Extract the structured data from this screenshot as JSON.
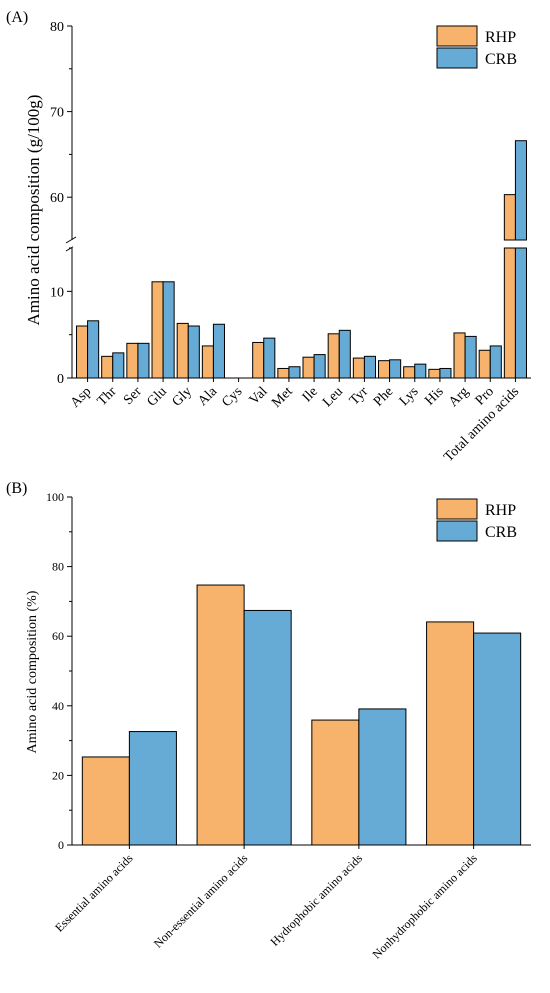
{
  "colors": {
    "rhp": "#F7B36B",
    "crb": "#66AAD6"
  },
  "panels": {
    "a": {
      "label": "(A)"
    },
    "b": {
      "label": "(B)"
    }
  },
  "chart_data": [
    {
      "type": "bar",
      "panel": "(A)",
      "ylabel": "Amino acid composition (g/100g)",
      "xlabel": "",
      "title": "",
      "axis_break": true,
      "ylim_lower": [
        0,
        15
      ],
      "ylim_upper": [
        55,
        80
      ],
      "yticks_lower": [
        0,
        10
      ],
      "yticks_upper": [
        60,
        70,
        80
      ],
      "legend_position": "top-right",
      "categories": [
        "Asp",
        "Thr",
        "Ser",
        "Glu",
        "Gly",
        "Ala",
        "Cys",
        "Val",
        "Met",
        "Ile",
        "Leu",
        "Tyr",
        "Phe",
        "Lys",
        "His",
        "Arg",
        "Pro",
        "Total amino acids"
      ],
      "series": [
        {
          "name": "RHP",
          "values": [
            6.0,
            2.5,
            4.0,
            11.1,
            6.3,
            3.7,
            0,
            4.1,
            1.1,
            2.4,
            5.1,
            2.3,
            2.0,
            1.3,
            1.0,
            5.2,
            3.2,
            60.3
          ]
        },
        {
          "name": "CRB",
          "values": [
            6.6,
            2.9,
            4.0,
            11.1,
            6.0,
            6.2,
            0,
            4.6,
            1.3,
            2.7,
            5.5,
            2.5,
            2.1,
            1.6,
            1.1,
            4.8,
            3.7,
            66.6
          ]
        }
      ]
    },
    {
      "type": "bar",
      "panel": "(B)",
      "ylabel": "Amino acid composition (%)",
      "xlabel": "",
      "title": "",
      "ylim": [
        0,
        100
      ],
      "yticks": [
        0,
        20,
        40,
        60,
        80,
        100
      ],
      "legend_position": "top-right",
      "categories": [
        "Essential amino acids",
        "Non-essential amino acids",
        "Hydrophobic amino acids",
        "Nonhydrophobic amino acids"
      ],
      "series": [
        {
          "name": "RHP",
          "values": [
            25.3,
            74.7,
            35.9,
            64.1
          ]
        },
        {
          "name": "CRB",
          "values": [
            32.6,
            67.4,
            39.1,
            60.9
          ]
        }
      ]
    }
  ]
}
